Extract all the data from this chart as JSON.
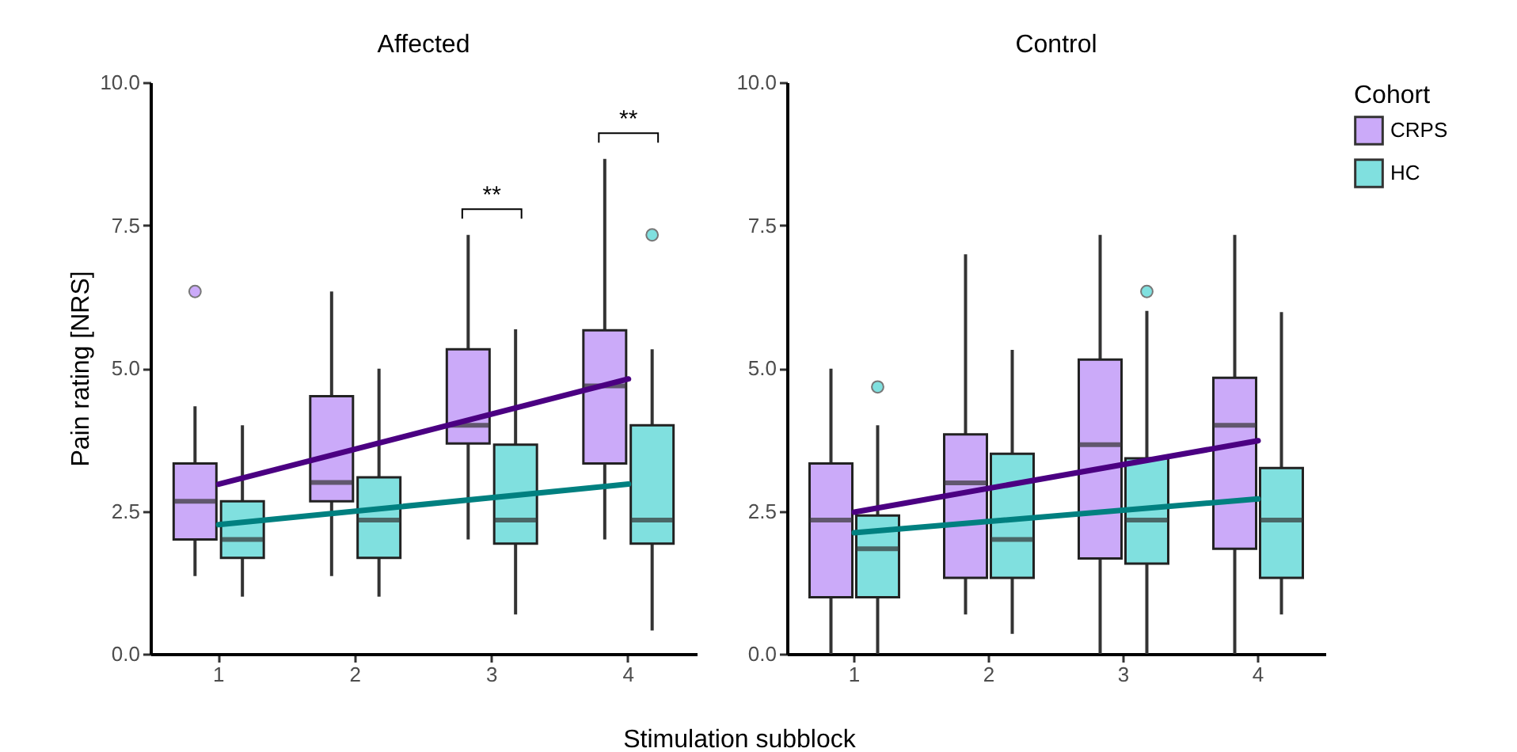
{
  "chart_data": [
    {
      "type": "box",
      "title": "Affected",
      "xlabel": "Stimulation subblock",
      "ylabel": "Pain rating [NRS]",
      "categories": [
        "1",
        "2",
        "3",
        "4"
      ],
      "ylim": [
        0,
        10
      ],
      "yticks": [
        {
          "value": 0,
          "label": "0.0"
        },
        {
          "value": 2.5,
          "label": "2.5"
        },
        {
          "value": 5,
          "label": "5.0"
        },
        {
          "value": 7.5,
          "label": "7.5"
        },
        {
          "value": 10,
          "label": "10.0"
        }
      ],
      "grid": false,
      "legend": false,
      "series": [
        {
          "color": "#cbaaf9",
          "boxes": [
            {
              "low": 1.36,
              "q1": 2.0,
              "median": 2.67,
              "q3": 3.33,
              "high": 4.33,
              "outliers": [
                6.34
              ]
            },
            {
              "low": 1.36,
              "q1": 2.67,
              "median": 3.0,
              "q3": 4.51,
              "high": 6.34
            },
            {
              "low": 2.0,
              "q1": 3.68,
              "median": 4.0,
              "q3": 5.33,
              "high": 7.33
            },
            {
              "low": 2.0,
              "q1": 3.33,
              "median": 4.69,
              "q3": 5.66,
              "high": 8.66
            }
          ]
        },
        {
          "color": "#80e0df",
          "boxes": [
            {
              "low": 1.0,
              "q1": 1.68,
              "median": 2.0,
              "q3": 2.67,
              "high": 4.0
            },
            {
              "low": 1.0,
              "q1": 1.68,
              "median": 2.34,
              "q3": 3.09,
              "high": 4.99
            },
            {
              "low": 0.69,
              "q1": 1.93,
              "median": 2.34,
              "q3": 3.66,
              "high": 5.68
            },
            {
              "low": 0.41,
              "q1": 1.93,
              "median": 2.34,
              "q3": 4.0,
              "high": 5.33,
              "outliers": [
                7.33
              ]
            }
          ]
        },
        {
          "type": "line",
          "color": "#4b0082",
          "x": [
            "1",
            "4"
          ],
          "values": [
            2.97,
            4.81
          ]
        },
        {
          "type": "line",
          "color": "#008080",
          "x": [
            "1",
            "4"
          ],
          "values": [
            2.26,
            2.97
          ]
        }
      ],
      "annotations": [
        "**",
        "**"
      ]
    },
    {
      "type": "box",
      "title": "Control",
      "categories": [
        "1",
        "2",
        "3",
        "4"
      ],
      "ylim": [
        0,
        10
      ],
      "yticks": [
        {
          "value": 0,
          "label": "0.0"
        },
        {
          "value": 2.5,
          "label": "2.5"
        },
        {
          "value": 5,
          "label": "5.0"
        },
        {
          "value": 7.5,
          "label": "7.5"
        },
        {
          "value": 10,
          "label": "10.0"
        }
      ],
      "grid": false,
      "legend": "right",
      "legend_title": "Cohort",
      "series": [
        {
          "name": "CRPS",
          "color": "#cbaaf9",
          "boxes": [
            {
              "low": 0,
              "q1": 0.99,
              "median": 2.34,
              "q3": 3.33,
              "high": 4.99
            },
            {
              "low": 0.69,
              "q1": 1.33,
              "median": 2.99,
              "q3": 3.84,
              "high": 6.99
            },
            {
              "low": 0,
              "q1": 1.67,
              "median": 3.66,
              "q3": 5.15,
              "high": 7.33
            },
            {
              "low": 0,
              "q1": 1.84,
              "median": 4.0,
              "q3": 4.83,
              "high": 7.33
            }
          ]
        },
        {
          "name": "HC",
          "color": "#80e0df",
          "boxes": [
            {
              "low": 0,
              "q1": 0.99,
              "median": 1.84,
              "q3": 2.42,
              "high": 4.0,
              "outliers": [
                4.67
              ]
            },
            {
              "low": 0.35,
              "q1": 1.33,
              "median": 2.0,
              "q3": 3.5,
              "high": 5.32
            },
            {
              "low": 0,
              "q1": 1.58,
              "median": 2.34,
              "q3": 3.42,
              "high": 6.0,
              "outliers": [
                6.34
              ]
            },
            {
              "low": 0.69,
              "q1": 1.33,
              "median": 2.34,
              "q3": 3.25,
              "high": 5.98
            }
          ]
        },
        {
          "type": "line",
          "color": "#4b0082",
          "x": [
            "1",
            "4"
          ],
          "values": [
            2.48,
            3.73
          ]
        },
        {
          "type": "line",
          "color": "#008080",
          "x": [
            "1",
            "4"
          ],
          "values": [
            2.12,
            2.71
          ]
        }
      ]
    }
  ]
}
